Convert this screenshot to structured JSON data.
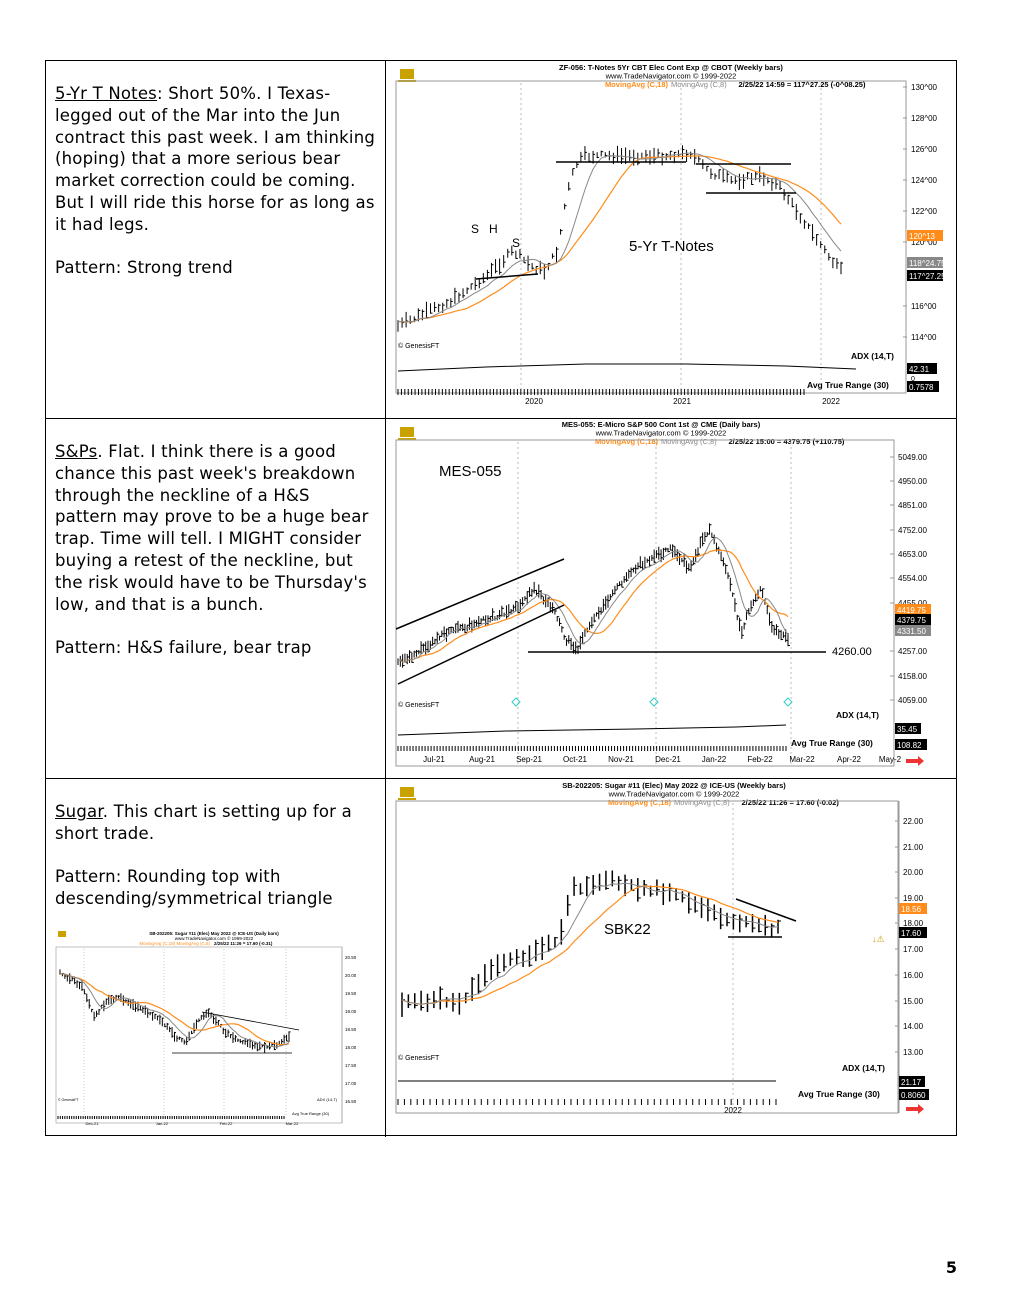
{
  "page": {
    "number": "5"
  },
  "rows": [
    {
      "heading": "5-Yr T Notes",
      "body": ": Short 50%. I Texas-legged out of the Mar into the Jun contract this past week. I am thinking (hoping) that a more serious bear market correction could be coming. But I will ride this horse for as long as it had legs.",
      "pattern": "Pattern: Strong trend",
      "chart": {
        "header1": "ZF-056:  T-Notes 5Yr CBT Elec Cont Exp @ CBOT  (Weekly bars)",
        "header2": "www.TradeNavigator.com © 1999-2022",
        "ma1": "MovingAvg (C,18)",
        "ma2": "MovingAvg (C,8)",
        "quote": "2/25/22 14:59 = 117^27.25 (-0^08.25)",
        "label": "5-Yr T-Notes",
        "annotations": [
          "S",
          "H",
          "S"
        ],
        "yticks": [
          "130^00",
          "128^00",
          "126^00",
          "124^00",
          "122^00",
          "120^00",
          "116^00",
          "114^00"
        ],
        "price_tags": [
          "120^13",
          "118^24.75",
          "117^27.25"
        ],
        "indicator1": "ADX (14,T)",
        "indicator1_value": "42.31",
        "indicator1_zero": "0",
        "indicator2": "Avg True Range (30)",
        "indicator2_value": "0.7578",
        "xticks": [
          "2020",
          "2021",
          "2022"
        ],
        "copyright": "© GenesisFT"
      }
    },
    {
      "heading": "S&Ps",
      "body": ". Flat. I think there is a good chance this past week's breakdown through the neckline of a H&S pattern may prove to be a huge bear trap. Time will tell. I MIGHT consider buying a retest of the neckline, but the risk would have to be Thursday's low, and that is a bunch.",
      "pattern": "Pattern: H&S failure, bear trap",
      "chart": {
        "header1": "MES-055:  E-Micro S&P 500 Cont 1st @ CME  (Daily bars)",
        "header2": "www.TradeNavigator.com © 1999-2022",
        "ma1": "MovingAvg (C,18)",
        "ma2": "MovingAvg (C,8)",
        "quote": "2/25/22 15:00 = 4379.75 (+110.75)",
        "label": "MES-055",
        "neckline": "4260.00",
        "yticks": [
          "5049.00",
          "4950.00",
          "4851.00",
          "4752.00",
          "4653.00",
          "4554.00",
          "4455.00",
          "4257.00",
          "4158.00",
          "4059.00"
        ],
        "price_tags": [
          "4419.75",
          "4379.75",
          "4331.50"
        ],
        "indicator1": "ADX (14,T)",
        "indicator1_value": "35.45",
        "indicator2": "Avg True Range (30)",
        "indicator2_value": "108.82",
        "xticks": [
          "Jul-21",
          "Aug-21",
          "Sep-21",
          "Oct-21",
          "Nov-21",
          "Dec-21",
          "Jan-22",
          "Feb-22",
          "Mar-22",
          "Apr-22",
          "May-2"
        ],
        "copyright": "© GenesisFT"
      }
    },
    {
      "heading": "Sugar",
      "body": ". This chart is setting up for a short trade.",
      "pattern": "Pattern: Rounding top with descending/symmetrical triangle",
      "chart": {
        "header1": "SB-202205:  Sugar #11 (Elec) May 2022 @ ICE-US  (Weekly bars)",
        "header2": "www.TradeNavigator.com © 1999-2022",
        "ma1": "MovingAvg (C,18)",
        "ma2": "MovingAvg (C,8)",
        "quote": "2/25/22 11:26 = 17.60 (-0.02)",
        "label": "SBK22",
        "yticks": [
          "22.00",
          "21.00",
          "20.00",
          "19.00",
          "18.00",
          "17.00",
          "16.00",
          "15.00",
          "14.00",
          "13.00"
        ],
        "price_tags": [
          "18.56",
          "17.60"
        ],
        "indicator1": "ADX (14,T)",
        "indicator1_value": "21.17",
        "indicator2": "Avg True Range (30)",
        "indicator2_value": "0.8060",
        "xticks": [
          "2022"
        ],
        "copyright": "© GenesisFT"
      },
      "mini_chart": {
        "header1": "SB-202205:  Sugar #11 (Elec) May 2022 @ ICE-US  (Daily bars)",
        "header2": "www.TradeNavigator.com © 1999-2022",
        "ma_line": "MovingAvg (C,18)  MovingAvg (C,8)",
        "quote": "2/25/22 11:26 = 17.60 (-0.31)",
        "yticks": [
          "20.50",
          "20.00",
          "19.50",
          "19.00",
          "18.50",
          "18.00",
          "17.50",
          "17.00",
          "16.50"
        ],
        "indicator1": "ADX (14,T)",
        "indicator2": "Avg True Range (30)",
        "xticks": [
          "Dec-21",
          "Jan-22",
          "Feb-22",
          "Mar-22"
        ],
        "copyright": "© GenesisFT"
      }
    }
  ]
}
